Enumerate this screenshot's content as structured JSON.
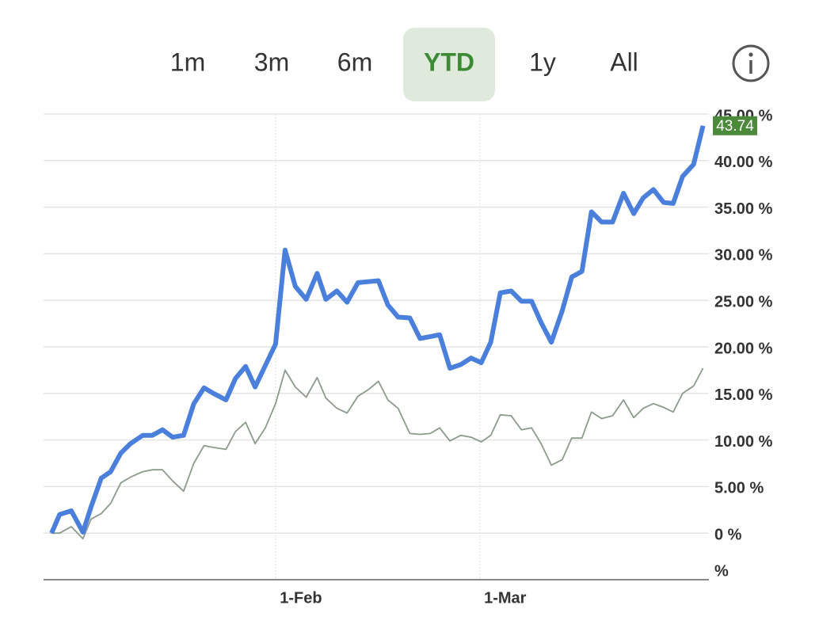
{
  "ranges": [
    "1m",
    "3m",
    "6m",
    "YTD",
    "1y",
    "All"
  ],
  "selected_range": 3,
  "chart_data": {
    "type": "line",
    "x": [
      0.3,
      1.4,
      3.0,
      4.6,
      5.7,
      7.1,
      8.4,
      9.8,
      11.1,
      12.8,
      14.1,
      15.5,
      16.9,
      18.4,
      19.8,
      21.2,
      22.5,
      24.2,
      25.5,
      26.9,
      28.2,
      29.6,
      31.0,
      32.3,
      33.7,
      35.2,
      36.7,
      37.9,
      39.4,
      40.8,
      42.3,
      43.7,
      45.1,
      46.4,
      47.8,
      49.4,
      50.8,
      52.2,
      53.5,
      54.9,
      56.4,
      57.8,
      59.2,
      60.5,
      61.8,
      63.3,
      64.7,
      66.1,
      67.4,
      68.8,
      70.3,
      71.6,
      73.0,
      74.3,
      75.7,
      77.2,
      78.7,
      80.1,
      81.4,
      82.8,
      84.2,
      85.5,
      86.8,
      88.3,
      89.6
    ],
    "series": [
      {
        "color": "#4a7fdc",
        "values": [
          0,
          2.0,
          2.4,
          0.1,
          2.8,
          5.9,
          6.6,
          8.6,
          9.6,
          10.5,
          10.5,
          11.1,
          10.3,
          10.5,
          13.9,
          15.6,
          15.0,
          14.3,
          16.6,
          17.9,
          15.7,
          18.0,
          20.3,
          30.4,
          26.5,
          25.1,
          27.9,
          25.1,
          26.0,
          24.8,
          26.9,
          27.0,
          27.1,
          24.5,
          23.2,
          23.1,
          20.9,
          21.1,
          21.3,
          17.7,
          18.1,
          18.8,
          18.3,
          20.5,
          25.8,
          26.0,
          24.9,
          24.9,
          22.6,
          20.5,
          23.9,
          27.5,
          28.1,
          34.5,
          33.4,
          33.4,
          36.5,
          34.3,
          36.0,
          36.9,
          35.5,
          35.4,
          38.3,
          39.6,
          43.74
        ],
        "value_labels": [
          null,
          null,
          null,
          null,
          null,
          null,
          null,
          null,
          null,
          null,
          null,
          null,
          null,
          null,
          null,
          null,
          null,
          null,
          null,
          null,
          null,
          null,
          null,
          null,
          null,
          null,
          null,
          null,
          null,
          null,
          null,
          null,
          null,
          null,
          null,
          null,
          null,
          null,
          null,
          null,
          null,
          null,
          null,
          null,
          null,
          null,
          null,
          null,
          null,
          null,
          null,
          null,
          null,
          null,
          null,
          null,
          null,
          null,
          null,
          null,
          null,
          null,
          null,
          null,
          "43.74"
        ],
        "label_color": "#4a8a3a"
      },
      {
        "color": "#8c9a8c",
        "values": [
          0,
          0,
          0.7,
          -0.6,
          1.5,
          2.1,
          3.2,
          5.4,
          6.0,
          6.6,
          6.8,
          6.8,
          5.6,
          4.5,
          7.5,
          9.4,
          9.2,
          9.0,
          10.9,
          11.9,
          9.6,
          11.3,
          13.9,
          17.5,
          15.7,
          14.6,
          16.7,
          14.5,
          13.4,
          12.9,
          14.7,
          15.4,
          16.3,
          14.3,
          13.4,
          10.7,
          10.6,
          10.7,
          11.3,
          9.9,
          10.5,
          10.3,
          9.8,
          10.5,
          12.7,
          12.6,
          11.1,
          11.3,
          9.6,
          7.3,
          7.9,
          10.2,
          10.2,
          13.0,
          12.3,
          12.6,
          14.3,
          12.4,
          13.4,
          13.9,
          13.5,
          13.0,
          15.0,
          15.8,
          17.7
        ]
      }
    ],
    "xlim": [
      -0.8,
      90.4
    ],
    "xticks": [
      {
        "value": 31,
        "label": "1-Feb"
      },
      {
        "value": 59,
        "label": "1-Mar"
      }
    ],
    "ylim": [
      -5,
      45
    ],
    "yticks": [
      {
        "value": -5,
        "label": "%"
      },
      {
        "value": 0,
        "label": "0 %"
      },
      {
        "value": 5,
        "label": "5.00 %"
      },
      {
        "value": 10,
        "label": "10.00 %"
      },
      {
        "value": 15,
        "label": "15.00 %"
      },
      {
        "value": 20,
        "label": "20.00 %"
      },
      {
        "value": 25,
        "label": "25.00 %"
      },
      {
        "value": 30,
        "label": "30.00 %"
      },
      {
        "value": 35,
        "label": "35.00 %"
      },
      {
        "value": 40,
        "label": "40.00 %"
      },
      {
        "value": 45,
        "label": "45.00 %"
      }
    ],
    "grid": true
  }
}
